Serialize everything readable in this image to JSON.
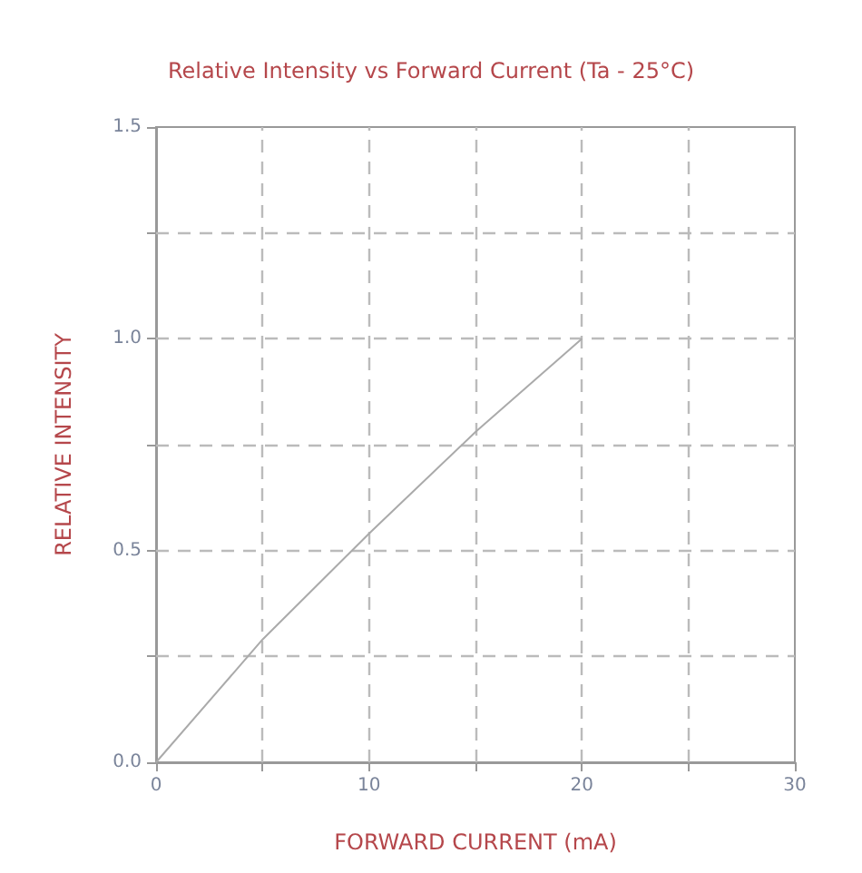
{
  "chart_data": {
    "type": "line",
    "title": "Relative Intensity vs Forward Current (Ta - 25°C)",
    "xlabel": "FORWARD CURRENT (mA)",
    "ylabel": "RELATIVE INTENSITY",
    "x": [
      0,
      5,
      10,
      15,
      20
    ],
    "series": [
      {
        "color": "#aaaaaa",
        "values": [
          0,
          0.29,
          0.54,
          0.78,
          1.0
        ]
      }
    ],
    "xlim": [
      0,
      30
    ],
    "xticks": [
      0,
      {
        "value": 5,
        "label": null
      },
      10,
      {
        "value": 15,
        "label": null
      },
      20,
      {
        "value": 25,
        "label": null
      },
      30
    ],
    "ylim": [
      0,
      1.5
    ],
    "yticks": [
      {
        "value": 0,
        "label": "0.0"
      },
      {
        "value": 0.25,
        "label": null
      },
      0.5,
      {
        "value": 0.75,
        "label": null
      },
      {
        "value": 1,
        "label": "1.0"
      },
      {
        "value": 1.25,
        "label": null
      },
      1.5
    ],
    "grid": true,
    "marker": "none",
    "line_style": "solid"
  }
}
